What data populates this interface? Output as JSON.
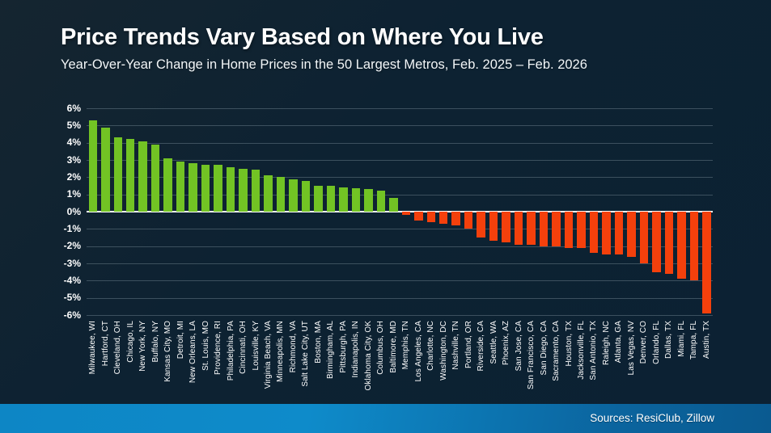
{
  "title": "Price Trends Vary Based on Where You Live",
  "subtitle": "Year-Over-Year Change in Home Prices in the 50 Largest Metros, Feb. 2025 – Feb. 2026",
  "footer": {
    "source_label": "Sources: ResiClub, Zillow"
  },
  "colors": {
    "background": "#0d2232",
    "positive": "#72c324",
    "negative": "#f4400c",
    "zero_line": "#ffffff",
    "grid": "rgba(168,188,199,0.30)",
    "text": "#ffffff",
    "footer_start": "#0d86c5",
    "footer_end": "#0a5a90"
  },
  "chart_data": {
    "type": "bar",
    "title": "Price Trends Vary Based on Where You Live",
    "subtitle": "Year-Over-Year Change in Home Prices in the 50 Largest Metros, Feb. 2025 – Feb. 2026",
    "xlabel": "",
    "ylabel": "",
    "ylim": [
      -6,
      6
    ],
    "yticks": [
      6,
      5,
      4,
      3,
      2,
      1,
      0,
      -1,
      -2,
      -3,
      -4,
      -5,
      -6
    ],
    "ytick_suffix": "%",
    "grid": true,
    "legend": false,
    "categories": [
      "Milwaukee, WI",
      "Hartford, CT",
      "Cleveland, OH",
      "Chicago, IL",
      "New York, NY",
      "Buffalo, NY",
      "Kansas City, MO",
      "Detroit, MI",
      "New Orleans, LA",
      "St. Louis, MO",
      "Providence, RI",
      "Philadelphia, PA",
      "Cincinnati, OH",
      "Louisville, KY",
      "Virginia Beach, VA",
      "Minneapolis, MN",
      "Richmond, VA",
      "Salt Lake City, UT",
      "Boston, MA",
      "Birmingham, AL",
      "Pittsburgh, PA",
      "Indianapolis, IN",
      "Oklahoma City, OK",
      "Columbus, OH",
      "Baltimore, MD",
      "Memphis, TN",
      "Los Angeles, CA",
      "Charlotte, NC",
      "Washington, DC",
      "Nashville, TN",
      "Portland, OR",
      "Riverside, CA",
      "Seattle, WA",
      "Phoenix, AZ",
      "San Jose, CA",
      "San Francisco, CA",
      "San Diego, CA",
      "Sacramento, CA",
      "Houston, TX",
      "Jacksonville, FL",
      "San Antonio, TX",
      "Raleigh, NC",
      "Atlanta, GA",
      "Las Vegas, NV",
      "Denver, CO",
      "Orlando, FL",
      "Dallas, TX",
      "Miami, FL",
      "Tampa, FL",
      "Austin, TX"
    ],
    "values": [
      5.3,
      4.9,
      4.3,
      4.2,
      4.1,
      3.9,
      3.1,
      2.9,
      2.8,
      2.7,
      2.7,
      2.6,
      2.5,
      2.45,
      2.1,
      2.0,
      1.9,
      1.8,
      1.5,
      1.5,
      1.4,
      1.35,
      1.3,
      1.2,
      0.8,
      -0.2,
      -0.5,
      -0.6,
      -0.7,
      -0.8,
      -1.0,
      -1.5,
      -1.7,
      -1.8,
      -1.9,
      -1.9,
      -2.0,
      -2.0,
      -2.1,
      -2.1,
      -2.4,
      -2.5,
      -2.5,
      -2.6,
      -3.0,
      -3.5,
      -3.6,
      -3.9,
      -4.0,
      -5.9
    ]
  }
}
